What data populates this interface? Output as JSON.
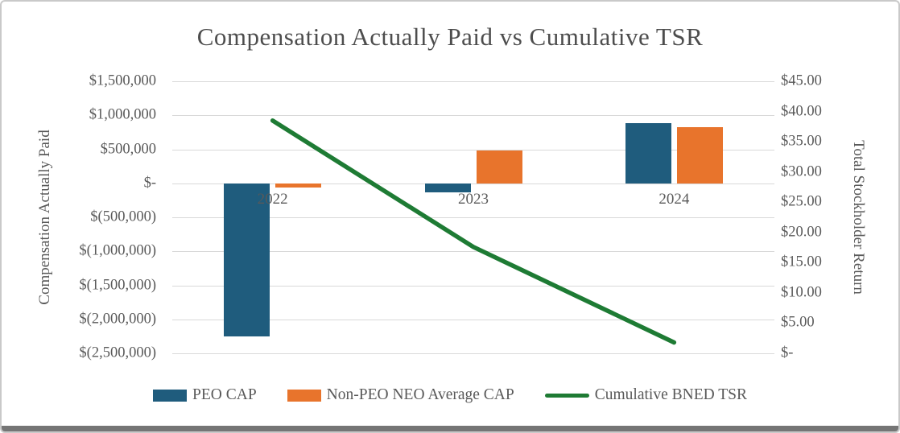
{
  "chart_data": {
    "type": "combo",
    "title": "Compensation Actually Paid vs Cumulative TSR",
    "categories": [
      "2022",
      "2023",
      "2024"
    ],
    "bar_series": [
      {
        "name": "PEO CAP",
        "color": "#1F5C7D",
        "values": [
          -2250000,
          -130000,
          890000
        ]
      },
      {
        "name": "Non-PEO NEO Average CAP",
        "color": "#E8742C",
        "values": [
          -60000,
          480000,
          830000
        ]
      }
    ],
    "line_series": {
      "name": "Cumulative BNED TSR",
      "color": "#1E7B34",
      "values": [
        38.5,
        17.6,
        1.8
      ]
    },
    "left_axis": {
      "title": "Compensation Actually Paid",
      "min": -2500000,
      "max": 1500000,
      "tick_labels": [
        "$1,500,000",
        "$1,000,000",
        "$500,000",
        "$-",
        "$(500,000)",
        "$(1,000,000)",
        "$(1,500,000)",
        "$(2,000,000)",
        "$(2,500,000)"
      ]
    },
    "right_axis": {
      "title": "Total Stockholder Return",
      "min": 0,
      "max": 45,
      "tick_labels": [
        "$45.00",
        "$40.00",
        "$35.00",
        "$30.00",
        "$25.00",
        "$20.00",
        "$15.00",
        "$10.00",
        "$5.00",
        "$-"
      ]
    },
    "layout": {
      "grid": "horizontal",
      "legend_position": "bottom",
      "gridline_color": "#D9D9D9",
      "text_color": "#595959"
    }
  }
}
